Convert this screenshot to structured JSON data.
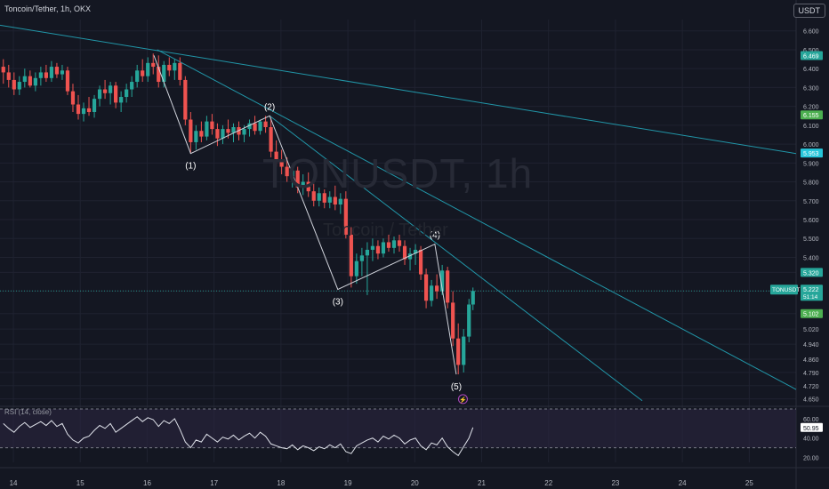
{
  "header": {
    "title": "Toncoin/Tether, 1h, OKX",
    "currency": "USDT"
  },
  "watermark": {
    "symbol": "TONUSDT, 1h",
    "name": "Toncoin / Tether"
  },
  "colors": {
    "background": "#141722",
    "grid": "#1f2230",
    "up": "#26a69a",
    "down": "#ef5350",
    "trendline": "#2196a8",
    "wave": "#d1d4dc",
    "rsi_line": "#e0e3eb",
    "rsi_band": "#2a2440"
  },
  "chart_data": [
    {
      "type": "candlestick",
      "price_axis": {
        "ticks": [
          "6.600",
          "6.500",
          "6.400",
          "6.300",
          "6.200",
          "6.100",
          "6.000",
          "5.900",
          "5.800",
          "5.700",
          "5.600",
          "5.500",
          "5.400",
          "5.320",
          "5.222",
          "5.102",
          "5.020",
          "4.940",
          "4.860",
          "4.790",
          "4.720",
          "4.650"
        ],
        "ylim": [
          4.62,
          6.66
        ]
      },
      "time_axis": {
        "ticks": [
          "14",
          "15",
          "16",
          "17",
          "18",
          "19",
          "20",
          "21",
          "22",
          "23",
          "24",
          "25"
        ],
        "xlim": [
          13.8,
          25.7
        ]
      },
      "price_labels": [
        {
          "text": "6.469",
          "value": 6.469,
          "color": "#26a69a"
        },
        {
          "text": "6.155",
          "value": 6.155,
          "color": "#4caf50"
        },
        {
          "text": "5.953",
          "value": 5.953,
          "color": "#26c6da"
        },
        {
          "text": "5.320",
          "value": 5.32,
          "color": "#26a69a"
        },
        {
          "text": "5.102",
          "value": 5.102,
          "color": "#4caf50"
        }
      ],
      "last_price": {
        "symbol": "TONUSDT",
        "price": "5.222",
        "countdown": "51:14",
        "value": 5.222
      },
      "waves": [
        {
          "label": "(1)",
          "x": 16.65,
          "y": 5.95
        },
        {
          "label": "(2)",
          "x": 17.83,
          "y": 6.15
        },
        {
          "label": "(3)",
          "x": 18.85,
          "y": 5.23
        },
        {
          "label": "(4)",
          "x": 20.3,
          "y": 5.47
        },
        {
          "label": "(5)",
          "x": 20.62,
          "y": 4.78
        }
      ],
      "wave_start": {
        "x": 16.1,
        "y": 6.47
      },
      "trendlines": [
        {
          "points": [
            [
              13.8,
              6.63
            ],
            [
              25.7,
              5.95
            ]
          ]
        },
        {
          "points": [
            [
              16.15,
              6.5
            ],
            [
              25.7,
              4.7
            ]
          ]
        },
        {
          "points": [
            [
              17.83,
              6.15
            ],
            [
              23.4,
              4.64
            ]
          ]
        }
      ],
      "candles": [
        {
          "x": 13.85,
          "o": 6.41,
          "h": 6.45,
          "l": 6.32,
          "c": 6.38
        },
        {
          "x": 13.93,
          "o": 6.38,
          "h": 6.42,
          "l": 6.3,
          "c": 6.34
        },
        {
          "x": 14.01,
          "o": 6.34,
          "h": 6.38,
          "l": 6.26,
          "c": 6.29
        },
        {
          "x": 14.09,
          "o": 6.29,
          "h": 6.36,
          "l": 6.26,
          "c": 6.33
        },
        {
          "x": 14.17,
          "o": 6.33,
          "h": 6.4,
          "l": 6.3,
          "c": 6.36
        },
        {
          "x": 14.25,
          "o": 6.36,
          "h": 6.39,
          "l": 6.3,
          "c": 6.31
        },
        {
          "x": 14.33,
          "o": 6.31,
          "h": 6.38,
          "l": 6.28,
          "c": 6.35
        },
        {
          "x": 14.41,
          "o": 6.35,
          "h": 6.41,
          "l": 6.31,
          "c": 6.38
        },
        {
          "x": 14.49,
          "o": 6.38,
          "h": 6.42,
          "l": 6.33,
          "c": 6.35
        },
        {
          "x": 14.57,
          "o": 6.35,
          "h": 6.44,
          "l": 6.33,
          "c": 6.41
        },
        {
          "x": 14.65,
          "o": 6.41,
          "h": 6.43,
          "l": 6.35,
          "c": 6.37
        },
        {
          "x": 14.73,
          "o": 6.37,
          "h": 6.42,
          "l": 6.34,
          "c": 6.39
        },
        {
          "x": 14.81,
          "o": 6.39,
          "h": 6.41,
          "l": 6.26,
          "c": 6.28
        },
        {
          "x": 14.89,
          "o": 6.28,
          "h": 6.32,
          "l": 6.17,
          "c": 6.21
        },
        {
          "x": 14.97,
          "o": 6.21,
          "h": 6.26,
          "l": 6.13,
          "c": 6.16
        },
        {
          "x": 15.05,
          "o": 6.16,
          "h": 6.22,
          "l": 6.12,
          "c": 6.19
        },
        {
          "x": 15.13,
          "o": 6.19,
          "h": 6.25,
          "l": 6.15,
          "c": 6.17
        },
        {
          "x": 15.21,
          "o": 6.17,
          "h": 6.26,
          "l": 6.14,
          "c": 6.24
        },
        {
          "x": 15.29,
          "o": 6.24,
          "h": 6.31,
          "l": 6.2,
          "c": 6.29
        },
        {
          "x": 15.37,
          "o": 6.29,
          "h": 6.34,
          "l": 6.24,
          "c": 6.27
        },
        {
          "x": 15.45,
          "o": 6.27,
          "h": 6.33,
          "l": 6.21,
          "c": 6.31
        },
        {
          "x": 15.53,
          "o": 6.31,
          "h": 6.33,
          "l": 6.19,
          "c": 6.22
        },
        {
          "x": 15.61,
          "o": 6.22,
          "h": 6.28,
          "l": 6.17,
          "c": 6.25
        },
        {
          "x": 15.69,
          "o": 6.25,
          "h": 6.32,
          "l": 6.22,
          "c": 6.29
        },
        {
          "x": 15.77,
          "o": 6.29,
          "h": 6.36,
          "l": 6.25,
          "c": 6.33
        },
        {
          "x": 15.85,
          "o": 6.33,
          "h": 6.42,
          "l": 6.3,
          "c": 6.39
        },
        {
          "x": 15.93,
          "o": 6.39,
          "h": 6.45,
          "l": 6.33,
          "c": 6.36
        },
        {
          "x": 16.01,
          "o": 6.36,
          "h": 6.46,
          "l": 6.33,
          "c": 6.43
        },
        {
          "x": 16.09,
          "o": 6.43,
          "h": 6.48,
          "l": 6.37,
          "c": 6.41
        },
        {
          "x": 16.17,
          "o": 6.41,
          "h": 6.47,
          "l": 6.3,
          "c": 6.33
        },
        {
          "x": 16.25,
          "o": 6.33,
          "h": 6.44,
          "l": 6.3,
          "c": 6.42
        },
        {
          "x": 16.33,
          "o": 6.42,
          "h": 6.46,
          "l": 6.36,
          "c": 6.39
        },
        {
          "x": 16.41,
          "o": 6.39,
          "h": 6.45,
          "l": 6.34,
          "c": 6.43
        },
        {
          "x": 16.49,
          "o": 6.43,
          "h": 6.46,
          "l": 6.31,
          "c": 6.34
        },
        {
          "x": 16.57,
          "o": 6.34,
          "h": 6.36,
          "l": 6.1,
          "c": 6.13
        },
        {
          "x": 16.65,
          "o": 6.13,
          "h": 6.17,
          "l": 5.95,
          "c": 6.01
        },
        {
          "x": 16.73,
          "o": 6.01,
          "h": 6.1,
          "l": 5.97,
          "c": 6.07
        },
        {
          "x": 16.81,
          "o": 6.07,
          "h": 6.12,
          "l": 6.01,
          "c": 6.04
        },
        {
          "x": 16.89,
          "o": 6.04,
          "h": 6.15,
          "l": 6.02,
          "c": 6.12
        },
        {
          "x": 16.97,
          "o": 6.12,
          "h": 6.16,
          "l": 6.05,
          "c": 6.08
        },
        {
          "x": 17.05,
          "o": 6.08,
          "h": 6.11,
          "l": 5.99,
          "c": 6.03
        },
        {
          "x": 17.13,
          "o": 6.03,
          "h": 6.1,
          "l": 6.0,
          "c": 6.08
        },
        {
          "x": 17.21,
          "o": 6.08,
          "h": 6.13,
          "l": 6.03,
          "c": 6.06
        },
        {
          "x": 17.29,
          "o": 6.06,
          "h": 6.11,
          "l": 6.01,
          "c": 6.09
        },
        {
          "x": 17.37,
          "o": 6.09,
          "h": 6.12,
          "l": 6.02,
          "c": 6.05
        },
        {
          "x": 17.45,
          "o": 6.05,
          "h": 6.1,
          "l": 6.01,
          "c": 6.08
        },
        {
          "x": 17.53,
          "o": 6.08,
          "h": 6.13,
          "l": 6.04,
          "c": 6.11
        },
        {
          "x": 17.61,
          "o": 6.11,
          "h": 6.15,
          "l": 6.05,
          "c": 6.07
        },
        {
          "x": 17.69,
          "o": 6.07,
          "h": 6.13,
          "l": 6.05,
          "c": 6.12
        },
        {
          "x": 17.77,
          "o": 6.12,
          "h": 6.15,
          "l": 6.06,
          "c": 6.09
        },
        {
          "x": 17.85,
          "o": 6.09,
          "h": 6.14,
          "l": 5.93,
          "c": 5.96
        },
        {
          "x": 17.93,
          "o": 5.96,
          "h": 6.02,
          "l": 5.88,
          "c": 5.92
        },
        {
          "x": 18.01,
          "o": 5.92,
          "h": 5.97,
          "l": 5.84,
          "c": 5.88
        },
        {
          "x": 18.09,
          "o": 5.88,
          "h": 5.93,
          "l": 5.8,
          "c": 5.83
        },
        {
          "x": 18.17,
          "o": 5.83,
          "h": 5.89,
          "l": 5.77,
          "c": 5.86
        },
        {
          "x": 18.25,
          "o": 5.86,
          "h": 5.88,
          "l": 5.74,
          "c": 5.77
        },
        {
          "x": 18.33,
          "o": 5.77,
          "h": 5.84,
          "l": 5.73,
          "c": 5.8
        },
        {
          "x": 18.41,
          "o": 5.8,
          "h": 5.85,
          "l": 5.72,
          "c": 5.75
        },
        {
          "x": 18.49,
          "o": 5.75,
          "h": 5.79,
          "l": 5.67,
          "c": 5.7
        },
        {
          "x": 18.57,
          "o": 5.7,
          "h": 5.77,
          "l": 5.67,
          "c": 5.74
        },
        {
          "x": 18.65,
          "o": 5.74,
          "h": 5.76,
          "l": 5.66,
          "c": 5.69
        },
        {
          "x": 18.73,
          "o": 5.69,
          "h": 5.75,
          "l": 5.66,
          "c": 5.72
        },
        {
          "x": 18.81,
          "o": 5.72,
          "h": 5.78,
          "l": 5.65,
          "c": 5.68
        },
        {
          "x": 18.89,
          "o": 5.68,
          "h": 5.74,
          "l": 5.63,
          "c": 5.71
        },
        {
          "x": 18.97,
          "o": 5.71,
          "h": 5.75,
          "l": 5.5,
          "c": 5.52
        },
        {
          "x": 19.05,
          "o": 5.52,
          "h": 5.56,
          "l": 5.24,
          "c": 5.3
        },
        {
          "x": 19.13,
          "o": 5.3,
          "h": 5.42,
          "l": 5.26,
          "c": 5.38
        },
        {
          "x": 19.21,
          "o": 5.38,
          "h": 5.45,
          "l": 5.3,
          "c": 5.41
        },
        {
          "x": 19.29,
          "o": 5.41,
          "h": 5.48,
          "l": 5.2,
          "c": 5.44
        },
        {
          "x": 19.37,
          "o": 5.44,
          "h": 5.5,
          "l": 5.38,
          "c": 5.46
        },
        {
          "x": 19.45,
          "o": 5.46,
          "h": 5.49,
          "l": 5.39,
          "c": 5.42
        },
        {
          "x": 19.53,
          "o": 5.42,
          "h": 5.5,
          "l": 5.4,
          "c": 5.48
        },
        {
          "x": 19.61,
          "o": 5.48,
          "h": 5.52,
          "l": 5.43,
          "c": 5.45
        },
        {
          "x": 19.69,
          "o": 5.45,
          "h": 5.51,
          "l": 5.42,
          "c": 5.49
        },
        {
          "x": 19.77,
          "o": 5.49,
          "h": 5.52,
          "l": 5.43,
          "c": 5.46
        },
        {
          "x": 19.85,
          "o": 5.46,
          "h": 5.49,
          "l": 5.36,
          "c": 5.39
        },
        {
          "x": 19.93,
          "o": 5.39,
          "h": 5.45,
          "l": 5.33,
          "c": 5.42
        },
        {
          "x": 20.01,
          "o": 5.42,
          "h": 5.47,
          "l": 5.36,
          "c": 5.44
        },
        {
          "x": 20.09,
          "o": 5.44,
          "h": 5.46,
          "l": 5.28,
          "c": 5.31
        },
        {
          "x": 20.17,
          "o": 5.31,
          "h": 5.34,
          "l": 5.13,
          "c": 5.17
        },
        {
          "x": 20.25,
          "o": 5.17,
          "h": 5.28,
          "l": 5.14,
          "c": 5.25
        },
        {
          "x": 20.33,
          "o": 5.25,
          "h": 5.31,
          "l": 5.18,
          "c": 5.22
        },
        {
          "x": 20.41,
          "o": 5.22,
          "h": 5.36,
          "l": 5.2,
          "c": 5.33
        },
        {
          "x": 20.49,
          "o": 5.33,
          "h": 5.35,
          "l": 5.13,
          "c": 5.16
        },
        {
          "x": 20.57,
          "o": 5.16,
          "h": 5.22,
          "l": 4.93,
          "c": 4.97
        },
        {
          "x": 20.65,
          "o": 4.97,
          "h": 5.05,
          "l": 4.78,
          "c": 4.83
        },
        {
          "x": 20.73,
          "o": 4.83,
          "h": 5.02,
          "l": 4.79,
          "c": 4.98
        },
        {
          "x": 20.81,
          "o": 4.98,
          "h": 5.18,
          "l": 4.95,
          "c": 5.15
        },
        {
          "x": 20.87,
          "o": 5.15,
          "h": 5.24,
          "l": 5.12,
          "c": 5.222
        }
      ]
    },
    {
      "type": "line",
      "title": "RSI (14, close)",
      "value_label": "50.95",
      "ylim": [
        15,
        70
      ],
      "ticks": [
        "60.00",
        "40.00",
        "20.00"
      ],
      "bands": [
        30,
        70
      ],
      "x": [
        13.85,
        13.93,
        14.01,
        14.09,
        14.17,
        14.25,
        14.33,
        14.41,
        14.49,
        14.57,
        14.65,
        14.73,
        14.81,
        14.89,
        14.97,
        15.05,
        15.13,
        15.21,
        15.29,
        15.37,
        15.45,
        15.53,
        15.61,
        15.69,
        15.77,
        15.85,
        15.93,
        16.01,
        16.09,
        16.17,
        16.25,
        16.33,
        16.41,
        16.49,
        16.57,
        16.65,
        16.73,
        16.81,
        16.89,
        16.97,
        17.05,
        17.13,
        17.21,
        17.29,
        17.37,
        17.45,
        17.53,
        17.61,
        17.69,
        17.77,
        17.85,
        17.93,
        18.01,
        18.09,
        18.17,
        18.25,
        18.33,
        18.41,
        18.49,
        18.57,
        18.65,
        18.73,
        18.81,
        18.89,
        18.97,
        19.05,
        19.13,
        19.21,
        19.29,
        19.37,
        19.45,
        19.53,
        19.61,
        19.69,
        19.77,
        19.85,
        19.93,
        20.01,
        20.09,
        20.17,
        20.25,
        20.33,
        20.41,
        20.49,
        20.57,
        20.65,
        20.73,
        20.81,
        20.87
      ],
      "values": [
        55,
        50,
        46,
        52,
        56,
        51,
        54,
        57,
        53,
        58,
        52,
        55,
        44,
        38,
        35,
        40,
        42,
        48,
        53,
        50,
        55,
        46,
        50,
        54,
        58,
        62,
        57,
        61,
        59,
        52,
        58,
        55,
        60,
        49,
        36,
        30,
        38,
        36,
        44,
        40,
        36,
        41,
        39,
        43,
        38,
        42,
        45,
        40,
        46,
        42,
        34,
        32,
        30,
        29,
        33,
        28,
        32,
        30,
        27,
        31,
        29,
        33,
        30,
        34,
        26,
        24,
        32,
        35,
        38,
        40,
        36,
        42,
        39,
        43,
        40,
        34,
        38,
        40,
        32,
        28,
        35,
        33,
        40,
        31,
        26,
        22,
        31,
        40,
        50.95
      ]
    }
  ]
}
